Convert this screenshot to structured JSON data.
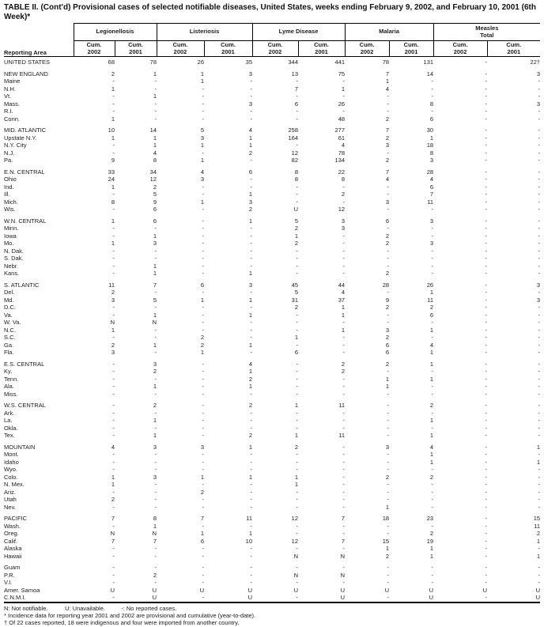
{
  "title": "TABLE II. (Cont'd) Provisional cases of selected notifiable diseases, United States, weeks ending February 9, 2002, and February 10, 2001 (6th Week)*",
  "header": {
    "reporting_area": "Reporting Area",
    "groups": [
      {
        "label": "Legionellosis"
      },
      {
        "label": "Listeriosis"
      },
      {
        "label": "Lyme Disease"
      },
      {
        "label": "Malaria"
      },
      {
        "label": "Measles\nTotal"
      }
    ],
    "sub_label": "Cum.",
    "years": [
      "2002",
      "2001"
    ]
  },
  "sections": [
    {
      "rows": [
        [
          "UNITED STATES",
          "68",
          "78",
          "26",
          "35",
          "344",
          "441",
          "78",
          "131",
          "-",
          "22†"
        ]
      ]
    },
    {
      "rows": [
        [
          "NEW ENGLAND",
          "2",
          "1",
          "1",
          "3",
          "13",
          "75",
          "7",
          "14",
          "-",
          "3"
        ],
        [
          "Maine",
          "-",
          "-",
          "1",
          "-",
          "-",
          "-",
          "1",
          "-",
          "-",
          "-"
        ],
        [
          "N.H.",
          "1",
          "-",
          "-",
          "-",
          "7",
          "1",
          "4",
          "-",
          "-",
          "-"
        ],
        [
          "Vt.",
          "-",
          "1",
          "-",
          "-",
          "-",
          "-",
          "-",
          "-",
          "-",
          "-"
        ],
        [
          "Mass.",
          "-",
          "-",
          "-",
          "3",
          "6",
          "26",
          "-",
          "8",
          "-",
          "3"
        ],
        [
          "R.I.",
          "-",
          "-",
          "-",
          "-",
          "-",
          "-",
          "-",
          "-",
          "-",
          "-"
        ],
        [
          "Conn.",
          "1",
          "-",
          "-",
          "-",
          "-",
          "48",
          "2",
          "6",
          "-",
          "-"
        ]
      ]
    },
    {
      "rows": [
        [
          "MID. ATLANTIC",
          "10",
          "14",
          "5",
          "4",
          "258",
          "277",
          "7",
          "30",
          "-",
          "-"
        ],
        [
          "Upstate N.Y.",
          "1",
          "1",
          "3",
          "1",
          "164",
          "61",
          "2",
          "1",
          "-",
          "-"
        ],
        [
          "N.Y. City",
          "-",
          "1",
          "1",
          "1",
          "-",
          "4",
          "3",
          "18",
          "-",
          "-"
        ],
        [
          "N.J.",
          "-",
          "4",
          "-",
          "2",
          "12",
          "78",
          "-",
          "8",
          "-",
          "-"
        ],
        [
          "Pa.",
          "9",
          "8",
          "1",
          "-",
          "82",
          "134",
          "2",
          "3",
          "-",
          "-"
        ]
      ]
    },
    {
      "rows": [
        [
          "E.N. CENTRAL",
          "33",
          "34",
          "4",
          "6",
          "8",
          "22",
          "7",
          "28",
          "-",
          "-"
        ],
        [
          "Ohio",
          "24",
          "12",
          "3",
          "-",
          "8",
          "8",
          "4",
          "4",
          "-",
          "-"
        ],
        [
          "Ind.",
          "1",
          "2",
          "-",
          "-",
          "-",
          "-",
          "-",
          "6",
          "-",
          "-"
        ],
        [
          "Ill.",
          "-",
          "5",
          "-",
          "1",
          "-",
          "2",
          "-",
          "7",
          "-",
          "-"
        ],
        [
          "Mich.",
          "8",
          "9",
          "1",
          "3",
          "-",
          "-",
          "3",
          "11",
          "-",
          "-"
        ],
        [
          "Wis.",
          "-",
          "6",
          "-",
          "2",
          "U",
          "12",
          "-",
          "-",
          "-",
          "-"
        ]
      ]
    },
    {
      "rows": [
        [
          "W.N. CENTRAL",
          "1",
          "6",
          "-",
          "1",
          "5",
          "3",
          "6",
          "3",
          "-",
          "-"
        ],
        [
          "Minn.",
          "-",
          "-",
          "-",
          "-",
          "2",
          "3",
          "-",
          "-",
          "-",
          "-"
        ],
        [
          "Iowa",
          "-",
          "1",
          "-",
          "-",
          "1",
          "-",
          "2",
          "-",
          "-",
          "-"
        ],
        [
          "Mo.",
          "1",
          "3",
          "-",
          "-",
          "2",
          "-",
          "2",
          "3",
          "-",
          "-"
        ],
        [
          "N. Dak.",
          "-",
          "-",
          "-",
          "-",
          "-",
          "-",
          "-",
          "-",
          "-",
          "-"
        ],
        [
          "S. Dak.",
          "-",
          "-",
          "-",
          "-",
          "-",
          "-",
          "-",
          "-",
          "-",
          "-"
        ],
        [
          "Nebr.",
          "-",
          "1",
          "-",
          "-",
          "-",
          "-",
          "-",
          "-",
          "-",
          "-"
        ],
        [
          "Kans.",
          "-",
          "1",
          "-",
          "1",
          "-",
          "-",
          "2",
          "-",
          "-",
          "-"
        ]
      ]
    },
    {
      "rows": [
        [
          "S. ATLANTIC",
          "11",
          "7",
          "6",
          "3",
          "45",
          "44",
          "28",
          "26",
          "-",
          "3"
        ],
        [
          "Del.",
          "2",
          "-",
          "-",
          "-",
          "5",
          "4",
          "-",
          "1",
          "-",
          "-"
        ],
        [
          "Md.",
          "3",
          "5",
          "1",
          "1",
          "31",
          "37",
          "9",
          "11",
          "-",
          "3"
        ],
        [
          "D.C.",
          "-",
          "-",
          "-",
          "-",
          "2",
          "1",
          "2",
          "2",
          "-",
          "-"
        ],
        [
          "Va.",
          "-",
          "1",
          "-",
          "1",
          "-",
          "1",
          "-",
          "6",
          "-",
          "-"
        ],
        [
          "W. Va.",
          "N",
          "N",
          "-",
          "-",
          "-",
          "-",
          "-",
          "-",
          "-",
          "-"
        ],
        [
          "N.C.",
          "1",
          "-",
          "-",
          "-",
          "-",
          "1",
          "3",
          "1",
          "-",
          "-"
        ],
        [
          "S.C.",
          "-",
          "-",
          "2",
          "-",
          "1",
          "-",
          "2",
          "-",
          "-",
          "-"
        ],
        [
          "Ga.",
          "2",
          "1",
          "2",
          "1",
          "-",
          "-",
          "6",
          "4",
          "-",
          "-"
        ],
        [
          "Fla.",
          "3",
          "-",
          "1",
          "-",
          "6",
          "-",
          "6",
          "1",
          "-",
          "-"
        ]
      ]
    },
    {
      "rows": [
        [
          "E.S. CENTRAL",
          "-",
          "3",
          "-",
          "4",
          "-",
          "2",
          "2",
          "1",
          "-",
          "-"
        ],
        [
          "Ky.",
          "-",
          "2",
          "-",
          "1",
          "-",
          "2",
          "-",
          "-",
          "-",
          "-"
        ],
        [
          "Tenn.",
          "-",
          "-",
          "-",
          "2",
          "-",
          "-",
          "1",
          "1",
          "-",
          "-"
        ],
        [
          "Ala.",
          "-",
          "1",
          "-",
          "1",
          "-",
          "-",
          "1",
          "-",
          "-",
          "-"
        ],
        [
          "Miss.",
          "-",
          "-",
          "-",
          "-",
          "-",
          "-",
          "-",
          "-",
          "-",
          "-"
        ]
      ]
    },
    {
      "rows": [
        [
          "W.S. CENTRAL",
          "-",
          "2",
          "-",
          "2",
          "1",
          "11",
          "-",
          "2",
          "-",
          "-"
        ],
        [
          "Ark.",
          "-",
          "-",
          "-",
          "-",
          "-",
          "-",
          "-",
          "-",
          "-",
          "-"
        ],
        [
          "La.",
          "-",
          "1",
          "-",
          "-",
          "-",
          "-",
          "-",
          "1",
          "-",
          "-"
        ],
        [
          "Okla.",
          "-",
          "-",
          "-",
          "-",
          "-",
          "-",
          "-",
          "-",
          "-",
          "-"
        ],
        [
          "Tex.",
          "-",
          "1",
          "-",
          "2",
          "1",
          "11",
          "-",
          "1",
          "-",
          "-"
        ]
      ]
    },
    {
      "rows": [
        [
          "MOUNTAIN",
          "4",
          "3",
          "3",
          "1",
          "2",
          "-",
          "3",
          "4",
          "-",
          "1"
        ],
        [
          "Mont.",
          "-",
          "-",
          "-",
          "-",
          "-",
          "-",
          "-",
          "1",
          "-",
          "-"
        ],
        [
          "Idaho",
          "-",
          "-",
          "-",
          "-",
          "-",
          "-",
          "-",
          "1",
          "-",
          "1"
        ],
        [
          "Wyo.",
          "-",
          "-",
          "-",
          "-",
          "-",
          "-",
          "-",
          "-",
          "-",
          "-"
        ],
        [
          "Colo.",
          "1",
          "3",
          "1",
          "1",
          "1",
          "-",
          "2",
          "2",
          "-",
          "-"
        ],
        [
          "N. Mex.",
          "1",
          "-",
          "-",
          "-",
          "1",
          "-",
          "-",
          "-",
          "-",
          "-"
        ],
        [
          "Ariz.",
          "-",
          "-",
          "2",
          "-",
          "-",
          "-",
          "-",
          "-",
          "-",
          "-"
        ],
        [
          "Utah",
          "2",
          "-",
          "-",
          "-",
          "-",
          "-",
          "-",
          "-",
          "-",
          "-"
        ],
        [
          "Nev.",
          "-",
          "-",
          "-",
          "-",
          "-",
          "-",
          "1",
          "-",
          "-",
          "-"
        ]
      ]
    },
    {
      "rows": [
        [
          "PACIFIC",
          "7",
          "8",
          "7",
          "11",
          "12",
          "7",
          "18",
          "23",
          "-",
          "15"
        ],
        [
          "Wash.",
          "-",
          "1",
          "-",
          "-",
          "-",
          "-",
          "-",
          "-",
          "-",
          "11"
        ],
        [
          "Oreg.",
          "N",
          "N",
          "1",
          "1",
          "-",
          "-",
          "-",
          "2",
          "-",
          "2"
        ],
        [
          "Calif.",
          "7",
          "7",
          "6",
          "10",
          "12",
          "7",
          "15",
          "19",
          "-",
          "1"
        ],
        [
          "Alaska",
          "-",
          "-",
          "-",
          "-",
          "-",
          "-",
          "1",
          "1",
          "-",
          "-"
        ],
        [
          "Hawaii",
          "-",
          "-",
          "-",
          "-",
          "N",
          "N",
          "2",
          "1",
          "-",
          "1"
        ]
      ]
    },
    {
      "rows": [
        [
          "Guam",
          "-",
          "-",
          "-",
          "-",
          "-",
          "-",
          "-",
          "-",
          "-",
          "-"
        ],
        [
          "P.R.",
          "-",
          "2",
          "-",
          "-",
          "N",
          "N",
          "-",
          "-",
          "-",
          "-"
        ],
        [
          "V.I.",
          "-",
          "-",
          "-",
          "-",
          "-",
          "-",
          "-",
          "-",
          "-",
          "-"
        ],
        [
          "Amer. Samoa",
          "U",
          "U",
          "U",
          "U",
          "U",
          "U",
          "U",
          "U",
          "U",
          "U"
        ],
        [
          "C.N.M.I.",
          "-",
          "U",
          "-",
          "U",
          "-",
          "U",
          "-",
          "U",
          "-",
          "U"
        ]
      ]
    }
  ],
  "footnotes": {
    "legend": [
      "N: Not notifiable.",
      "U: Unavailable.",
      "-: No reported cases."
    ],
    "notes": [
      "* Incidence data for reporting year 2001 and 2002 are provisional and cumulative (year-to-date).",
      "† Of 22 cases reported, 18 were indigenous and four were imported from another country."
    ]
  }
}
